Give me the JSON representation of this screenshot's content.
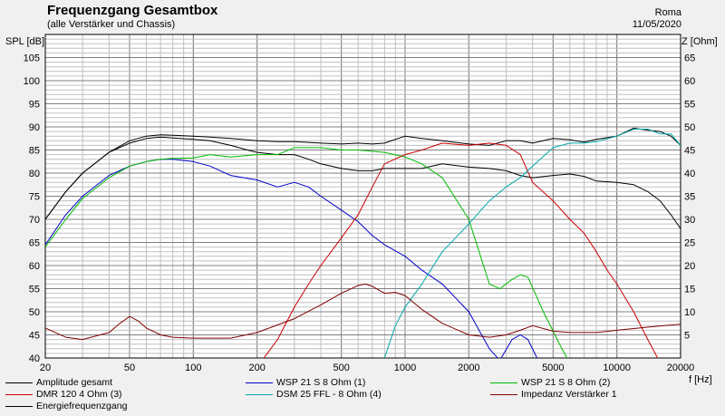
{
  "header": {
    "title": "Frequenzgang Gesamtbox",
    "subtitle": "(alle Verstärker und Chassis)",
    "author": "Roma",
    "date": "11/05/2020"
  },
  "axes": {
    "left_label": "SPL [dB]",
    "right_label": "Z [Ohm]",
    "x_label": "f [Hz]"
  },
  "colors": {
    "background": "#f0f0f0",
    "plot_bg": "#ffffff",
    "grid_major": "#7f7f7f",
    "grid_minor": "#c0c0c0"
  },
  "chart_data": {
    "type": "line",
    "title": "Frequenzgang Gesamtbox",
    "xlabel": "f [Hz]",
    "ylabel": "SPL [dB]",
    "y2label": "Z [Ohm]",
    "xscale": "log",
    "xlim": [
      20,
      20000
    ],
    "ylim": [
      40,
      110
    ],
    "y2lim": [
      0,
      70
    ],
    "grid": true,
    "legend_position": "bottom",
    "x_ticks": [
      20,
      50,
      100,
      200,
      500,
      1000,
      2000,
      5000,
      10000,
      20000
    ],
    "x_tick_labels": [
      "20",
      "50",
      "100",
      "200",
      "500",
      "1000",
      "2000",
      "5000",
      "10000",
      "20000"
    ],
    "y_ticks": [
      40,
      45,
      50,
      55,
      60,
      65,
      70,
      75,
      80,
      85,
      90,
      95,
      100,
      105
    ],
    "y2_ticks": [
      5,
      10,
      15,
      20,
      25,
      30,
      35,
      40,
      45,
      50,
      55,
      60,
      65
    ],
    "series": [
      {
        "name": "Amplitude gesamt",
        "color": "#000000",
        "axis": "left",
        "x": [
          20,
          25,
          30,
          40,
          50,
          60,
          70,
          80,
          100,
          120,
          150,
          200,
          250,
          300,
          400,
          500,
          600,
          700,
          800,
          1000,
          1200,
          1500,
          2000,
          2500,
          3000,
          3500,
          4000,
          5000,
          6000,
          7000,
          8000,
          10000,
          12000,
          14000,
          16000,
          18000,
          20000
        ],
        "y": [
          70,
          76,
          80,
          84.5,
          87,
          88,
          88.3,
          88.2,
          88,
          87.8,
          87.5,
          87,
          86.8,
          86.8,
          86.5,
          86.3,
          86.5,
          86.3,
          86.5,
          88,
          87.5,
          87,
          86.3,
          86,
          87,
          87,
          86.5,
          87.5,
          87.2,
          86.7,
          87.3,
          88,
          89.7,
          89.3,
          89,
          88,
          86
        ]
      },
      {
        "name": "Energiefrequenzgang",
        "color": "#000000",
        "axis": "left",
        "x": [
          20,
          25,
          30,
          40,
          50,
          60,
          70,
          80,
          100,
          120,
          150,
          180,
          200,
          250,
          300,
          350,
          400,
          500,
          600,
          700,
          800,
          1000,
          1200,
          1500,
          2000,
          2500,
          3000,
          3500,
          4000,
          5000,
          6000,
          7000,
          8000,
          10000,
          12000,
          14000,
          16000,
          18000,
          20000
        ],
        "y": [
          70,
          76,
          80,
          84.5,
          86.5,
          87.5,
          87.8,
          87.6,
          87.3,
          87,
          86,
          85,
          84.5,
          84,
          84,
          83,
          82,
          81,
          80.5,
          80.5,
          81,
          81,
          81,
          82,
          81.3,
          81,
          80.5,
          79.5,
          79,
          79.5,
          79.8,
          79.3,
          78.3,
          78,
          77.5,
          76,
          74,
          71,
          68
        ]
      },
      {
        "name": "WSP 21 S 8 Ohm (1)",
        "color": "#0000cc",
        "axis": "left",
        "x": [
          20,
          25,
          30,
          40,
          50,
          60,
          70,
          80,
          100,
          120,
          150,
          200,
          250,
          300,
          350,
          400,
          500,
          600,
          700,
          800,
          1000,
          1200,
          1500,
          2000,
          2500,
          2800,
          3200,
          3500,
          3800,
          4200,
          5000
        ],
        "y": [
          64.5,
          71,
          75,
          79.5,
          81.5,
          82.5,
          83,
          83,
          82.5,
          81.5,
          79.5,
          78.5,
          77,
          78,
          77,
          75,
          72,
          69.5,
          66.5,
          64.5,
          62,
          59,
          56,
          50,
          42,
          39.5,
          44,
          45,
          44,
          40,
          36
        ]
      },
      {
        "name": "WSP 21 S 8 Ohm (2)",
        "color": "#00bb00",
        "axis": "left",
        "x": [
          20,
          25,
          30,
          40,
          50,
          60,
          70,
          80,
          100,
          120,
          150,
          200,
          250,
          300,
          400,
          500,
          600,
          800,
          1000,
          1200,
          1500,
          2000,
          2500,
          2800,
          3200,
          3500,
          3800,
          4500,
          5500,
          6000,
          7000
        ],
        "y": [
          64,
          70,
          74.5,
          79,
          81.5,
          82.5,
          83,
          83.2,
          83.3,
          84,
          83.5,
          84,
          84,
          85.5,
          85.5,
          85,
          85,
          84.5,
          83.5,
          82,
          79,
          70,
          56,
          55,
          57,
          58,
          57.5,
          50,
          42,
          39,
          35
        ]
      },
      {
        "name": "DMR 120 4 Ohm (3)",
        "color": "#cc0000",
        "axis": "left",
        "x": [
          200,
          250,
          300,
          350,
          400,
          500,
          600,
          700,
          800,
          1000,
          1200,
          1500,
          2000,
          2500,
          3000,
          3500,
          4000,
          5000,
          6000,
          7000,
          8000,
          9000,
          10000,
          12000,
          14000,
          16000
        ],
        "y": [
          38,
          44,
          51,
          56,
          60,
          66,
          71,
          77,
          82,
          84,
          85,
          86.5,
          86,
          86.5,
          86,
          84,
          78,
          74,
          70,
          67,
          63,
          59,
          56,
          50,
          44,
          39
        ]
      },
      {
        "name": "DSM 25 FFL - 8 Ohm (4)",
        "color": "#00aaaa",
        "axis": "left",
        "x": [
          700,
          800,
          900,
          1000,
          1200,
          1500,
          2000,
          2500,
          3000,
          3500,
          4000,
          5000,
          6000,
          7000,
          8000,
          10000,
          12000,
          14000,
          16000,
          18000,
          20000
        ],
        "y": [
          36,
          40,
          47,
          51,
          56,
          63,
          69,
          74,
          77,
          79,
          81.5,
          85.5,
          86.5,
          86.5,
          86.8,
          88,
          89.5,
          89.5,
          88.5,
          88.5,
          86
        ]
      },
      {
        "name": "Impedanz Verstärker 1",
        "color": "#800000",
        "axis": "right",
        "x": [
          20,
          25,
          30,
          40,
          45,
          50,
          55,
          60,
          70,
          80,
          100,
          150,
          200,
          300,
          400,
          500,
          600,
          650,
          700,
          800,
          900,
          1000,
          1200,
          1500,
          2000,
          2500,
          3000,
          3500,
          4000,
          5000,
          6000,
          8000,
          10000,
          15000,
          20000
        ],
        "y": [
          6.5,
          4.5,
          4,
          5.5,
          7.5,
          9,
          8,
          6.5,
          5,
          4.5,
          4.3,
          4.3,
          5.5,
          8.5,
          11.5,
          14,
          15.7,
          16,
          15.5,
          14,
          14.2,
          13.5,
          10.5,
          7.5,
          5,
          4.5,
          5,
          6,
          7,
          5.8,
          5.5,
          5.5,
          6,
          6.8,
          7.3
        ]
      }
    ]
  },
  "legend": [
    {
      "label": "Amplitude gesamt",
      "color": "#000000"
    },
    {
      "label": "WSP 21 S 8 Ohm (1)",
      "color": "#0000cc"
    },
    {
      "label": "WSP 21 S 8 Ohm (2)",
      "color": "#00bb00"
    },
    {
      "label": "DMR 120 4 Ohm (3)",
      "color": "#cc0000"
    },
    {
      "label": "DSM 25 FFL - 8 Ohm (4)",
      "color": "#00aaaa"
    },
    {
      "label": "Impedanz Verstärker 1",
      "color": "#800000"
    },
    {
      "label": "Energiefrequenzgang",
      "color": "#000000"
    }
  ]
}
